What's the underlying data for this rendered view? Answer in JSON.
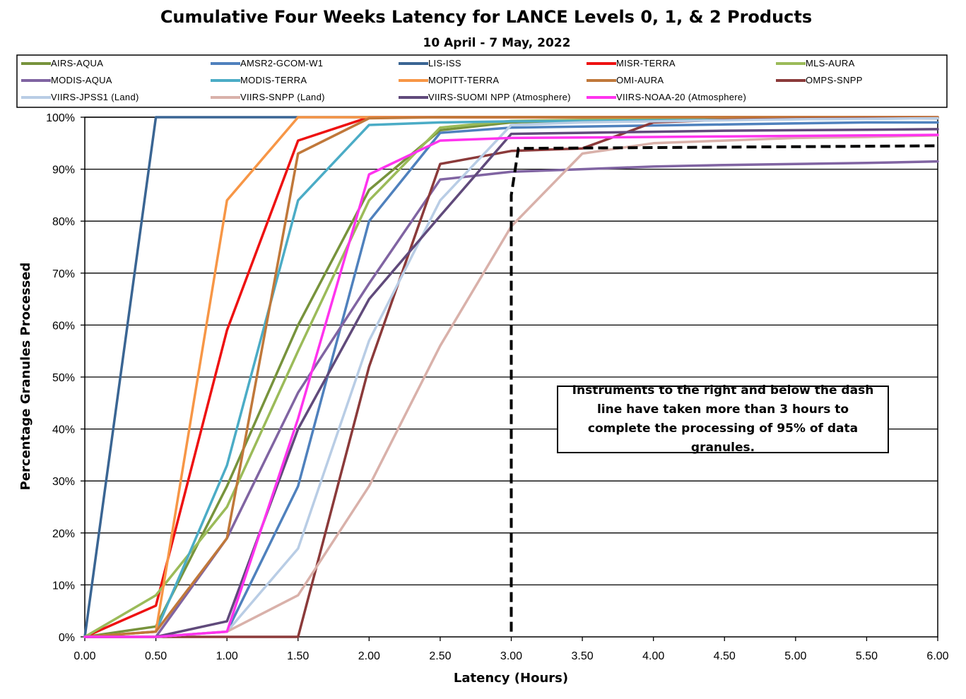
{
  "chart_data": {
    "type": "line",
    "title": "Cumulative Four Weeks Latency  for LANCE Levels 0, 1, & 2 Products",
    "subtitle": "10  April  - 7  May,  2022",
    "xlabel": "Latency (Hours)",
    "ylabel": "Percentage Granules Processed",
    "xlim": [
      0,
      6
    ],
    "ylim": [
      0,
      100
    ],
    "x_ticks": [
      "0.00",
      "0.50",
      "1.00",
      "1.50",
      "2.00",
      "2.50",
      "3.00",
      "3.50",
      "4.00",
      "4.50",
      "5.00",
      "5.50",
      "6.00"
    ],
    "y_ticks": [
      "0%",
      "10%",
      "20%",
      "30%",
      "40%",
      "50%",
      "60%",
      "70%",
      "80%",
      "90%",
      "100%"
    ],
    "grid": "horizontal",
    "legend_position": "top",
    "annotation": "Instruments to the right and below the dash line have taken more than 3 hours to complete the processing of 95% of data granules.",
    "threshold_line": [
      [
        3.0,
        1
      ],
      [
        3.0,
        85
      ],
      [
        3.05,
        94
      ],
      [
        6.0,
        94.5
      ]
    ],
    "x": [
      0,
      0.5,
      1.0,
      1.5,
      2.0,
      2.5,
      3.0,
      3.5,
      4.0,
      4.5,
      5.0,
      5.5,
      6.0
    ],
    "series": [
      {
        "name": "AIRS-AQUA",
        "color": "#77933c",
        "values": [
          0,
          2,
          29,
          60,
          86,
          97.5,
          99,
          99.3,
          99.5,
          99.6,
          99.7,
          99.8,
          99.8
        ]
      },
      {
        "name": "AMSR2-GCOM-W1",
        "color": "#4f81bd",
        "values": [
          0,
          0,
          1,
          29,
          80,
          97,
          98,
          98.2,
          98.4,
          98.6,
          98.8,
          99,
          99
        ]
      },
      {
        "name": "LIS-ISS",
        "color": "#3a6593",
        "values": [
          0,
          100,
          100,
          100,
          100,
          100,
          100,
          100,
          100,
          100,
          100,
          100,
          100
        ]
      },
      {
        "name": "MISR-TERRA",
        "color": "#ee1111",
        "values": [
          0,
          6,
          59,
          95.5,
          100,
          100,
          100,
          100,
          100,
          100,
          100,
          100,
          100
        ]
      },
      {
        "name": "MLS-AURA",
        "color": "#9bbb59",
        "values": [
          0,
          8,
          25,
          55,
          84,
          98,
          99.3,
          99.5,
          99.6,
          99.7,
          99.8,
          99.8,
          99.8
        ]
      },
      {
        "name": "MODIS-AQUA",
        "color": "#8064a2",
        "values": [
          0,
          0,
          19,
          47,
          68,
          88,
          89.5,
          90,
          90.5,
          90.8,
          91,
          91.2,
          91.5
        ]
      },
      {
        "name": "MODIS-TERRA",
        "color": "#4bacc6",
        "values": [
          0,
          1,
          33,
          84,
          98.5,
          99,
          99.2,
          99.3,
          99.4,
          99.5,
          99.6,
          99.7,
          99.8
        ]
      },
      {
        "name": "MOPITT-TERRA",
        "color": "#f79646",
        "values": [
          0,
          1,
          84,
          100,
          100,
          100,
          100,
          100,
          100,
          100,
          100,
          100,
          100
        ]
      },
      {
        "name": "OMI-AURA",
        "color": "#c0783a",
        "values": [
          0,
          1,
          19,
          93,
          99.8,
          100,
          100,
          100,
          100,
          100,
          100,
          100,
          100
        ]
      },
      {
        "name": "OMPS-SNPP",
        "color": "#8b3a3a",
        "values": [
          0,
          0,
          0,
          0,
          52,
          91,
          93.5,
          94,
          99,
          99.5,
          99.7,
          99.8,
          99.8
        ]
      },
      {
        "name": "VIIRS-JPSS1 (Land)",
        "color": "#b9cde5",
        "values": [
          0,
          0,
          1,
          17,
          57,
          84,
          98.5,
          99,
          99.2,
          99.4,
          99.6,
          99.7,
          99.8
        ]
      },
      {
        "name": "VIIRS-SNPP (Land)",
        "color": "#d9b1aa",
        "values": [
          0,
          0,
          1,
          8,
          29,
          56,
          79,
          93,
          95,
          95.5,
          96,
          96.2,
          96.5
        ]
      },
      {
        "name": "VIIRS-SUOMI NPP (Atmosphere)",
        "color": "#604a7b",
        "values": [
          0,
          0,
          3,
          40,
          65,
          81,
          96.8,
          97,
          97.2,
          97.4,
          97.5,
          97.6,
          97.7
        ]
      },
      {
        "name": "VIIRS-NOAA-20 (Atmosphere)",
        "color": "#ff33ee",
        "values": [
          0,
          0,
          1,
          42,
          89,
          95.5,
          96,
          96.1,
          96.2,
          96.3,
          96.4,
          96.5,
          96.6
        ]
      }
    ]
  }
}
